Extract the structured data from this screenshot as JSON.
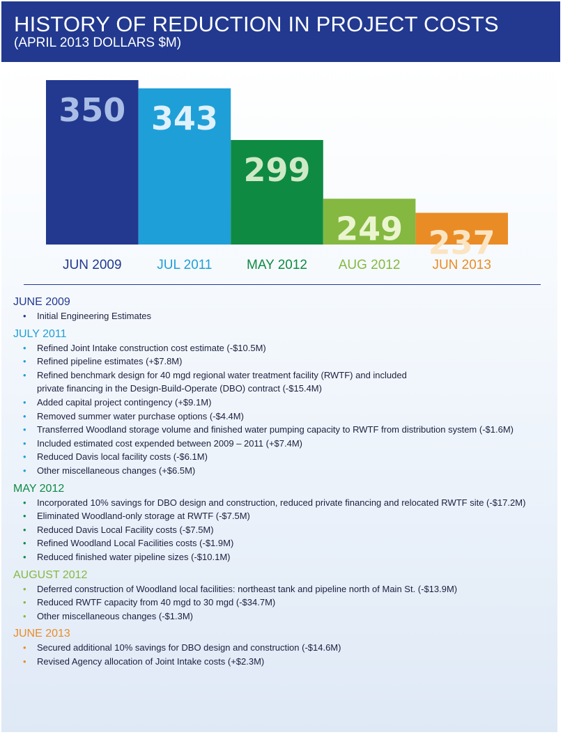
{
  "header": {
    "title": "HISTORY OF REDUCTION IN PROJECT COSTS",
    "subtitle": "(APRIL 2013 DOLLARS $M)"
  },
  "colors": {
    "header_bg": "#22398f",
    "jun2009": "#22398f",
    "jul2011": "#1f9fd7",
    "may2012": "#0e8a43",
    "aug2012": "#84b841",
    "jun2013": "#ea8c25",
    "value_jun2009": "#a9bde6",
    "value_jul2011": "#dff1fb",
    "value_may2012": "#cfe9c6",
    "value_aug2012": "#eaf5cf",
    "value_jun2013": "#fbe4c1"
  },
  "chart_data": {
    "type": "bar",
    "categories": [
      "JUN 2009",
      "JUL 2011",
      "MAY 2012",
      "AUG 2012",
      "JUN 2013"
    ],
    "values": [
      350,
      343,
      299,
      249,
      237
    ],
    "ylim": [
      0,
      350
    ],
    "grid": false,
    "legend": "none"
  },
  "notes": [
    {
      "title": "JUNE 2009",
      "items": [
        [
          "Initial Engineering Estimates"
        ]
      ]
    },
    {
      "title": "JULY 2011",
      "items": [
        [
          "Refined Joint Intake construction cost estimate  (-$10.5M)"
        ],
        [
          "Refined pipeline estimates (+$7.8M)"
        ],
        [
          "Refined benchmark design for 40 mgd regional water treatment facility (RWTF) and included",
          "private financing in the Design-Build-Operate (DBO) contract (-$15.4M)"
        ],
        [
          "Added capital project contingency (+$9.1M)"
        ],
        [
          "Removed summer water purchase options (-$4.4M)"
        ],
        [
          "Transferred Woodland storage volume and finished water pumping capacity to RWTF from distribution system (-$1.6M)"
        ],
        [
          "Included estimated cost expended between 2009 – 2011 (+$7.4M)"
        ],
        [
          "Reduced Davis local facility costs (-$6.1M)"
        ],
        [
          "Other miscellaneous changes (+$6.5M)"
        ]
      ]
    },
    {
      "title": "MAY 2012",
      "items": [
        [
          "Incorporated 10% savings for DBO design and construction, reduced private financing and relocated RWTF site (-$17.2M)"
        ],
        [
          "Eliminated Woodland-only storage at RWTF (-$7.5M)"
        ],
        [
          "Reduced Davis Local Facility costs (-$7.5M)"
        ],
        [
          "Refined Woodland Local Facilities costs (-$1.9M)"
        ],
        [
          "Reduced finished water pipeline sizes (-$10.1M)"
        ]
      ]
    },
    {
      "title": "AUGUST 2012",
      "items": [
        [
          "Deferred construction of Woodland local facilities: northeast tank and pipeline north of Main St. (-$13.9M)"
        ],
        [
          "Reduced RWTF capacity from 40 mgd to 30 mgd (-$34.7M)"
        ],
        [
          "Other miscellaneous changes (-$1.3M)"
        ]
      ]
    },
    {
      "title": "JUNE 2013",
      "items": [
        [
          "Secured additional 10% savings for DBO design and construction (-$14.6M)"
        ],
        [
          "Revised Agency allocation of Joint Intake costs (+$2.3M)"
        ]
      ]
    }
  ]
}
